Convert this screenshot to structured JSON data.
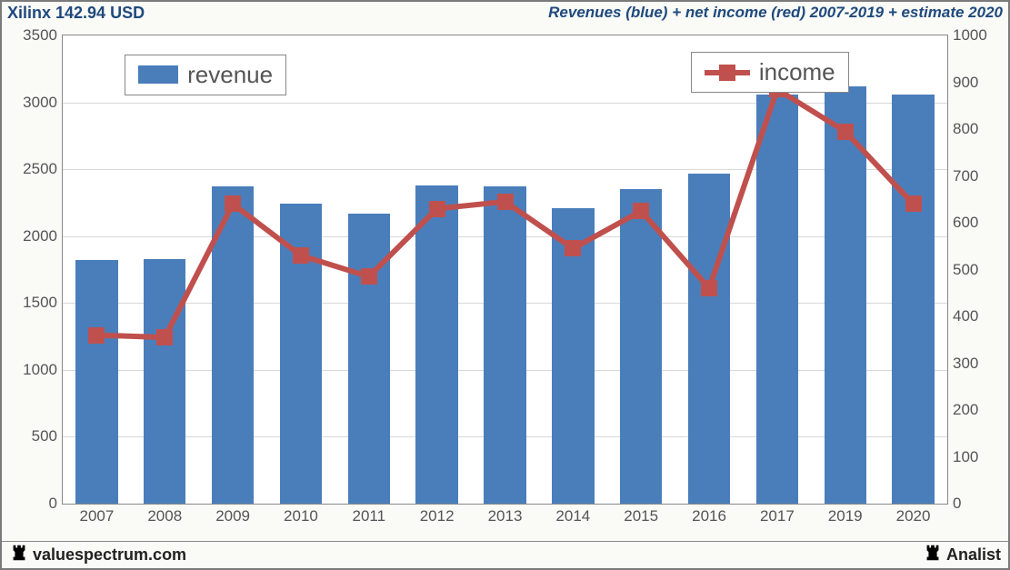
{
  "header": {
    "left": "Xilinx 142.94 USD",
    "right": "Revenues (blue) + net income (red) 2007-2019 + estimate 2020"
  },
  "footer": {
    "left": "valuespectrum.com",
    "right": "Analist"
  },
  "chart": {
    "type": "bar+line",
    "background_color": "#fafaf7",
    "plot_background": "#ffffff",
    "grid_color": "#d9d9d9",
    "axis_color": "#888888",
    "label_color": "#555555",
    "header_color": "#1f497d",
    "label_fontsize": 17,
    "legend_fontsize": 26,
    "categories": [
      "2007",
      "2008",
      "2009",
      "2010",
      "2011",
      "2012",
      "2013",
      "2014",
      "2015",
      "2016",
      "2017",
      "2019",
      "2020"
    ],
    "y_left": {
      "min": 0,
      "max": 3500,
      "step": 500
    },
    "y_right": {
      "min": 0,
      "max": 1000,
      "step": 100
    },
    "bars": {
      "label": "revenue",
      "color": "#4a7ebb",
      "width": 0.62,
      "values": [
        1820,
        1830,
        2370,
        2240,
        2170,
        2380,
        2370,
        2210,
        2350,
        2470,
        3060,
        3120,
        3060
      ]
    },
    "line": {
      "label": "income",
      "color": "#c0504d",
      "line_width": 6,
      "marker_size": 18,
      "values": [
        360,
        355,
        640,
        530,
        485,
        630,
        645,
        545,
        625,
        460,
        885,
        795,
        640
      ]
    },
    "legends": {
      "revenue": {
        "top_pct": 4,
        "left_pct": 7
      },
      "income": {
        "top_pct": 3.5,
        "left_pct": 71
      }
    }
  },
  "rook_color": "#000000"
}
